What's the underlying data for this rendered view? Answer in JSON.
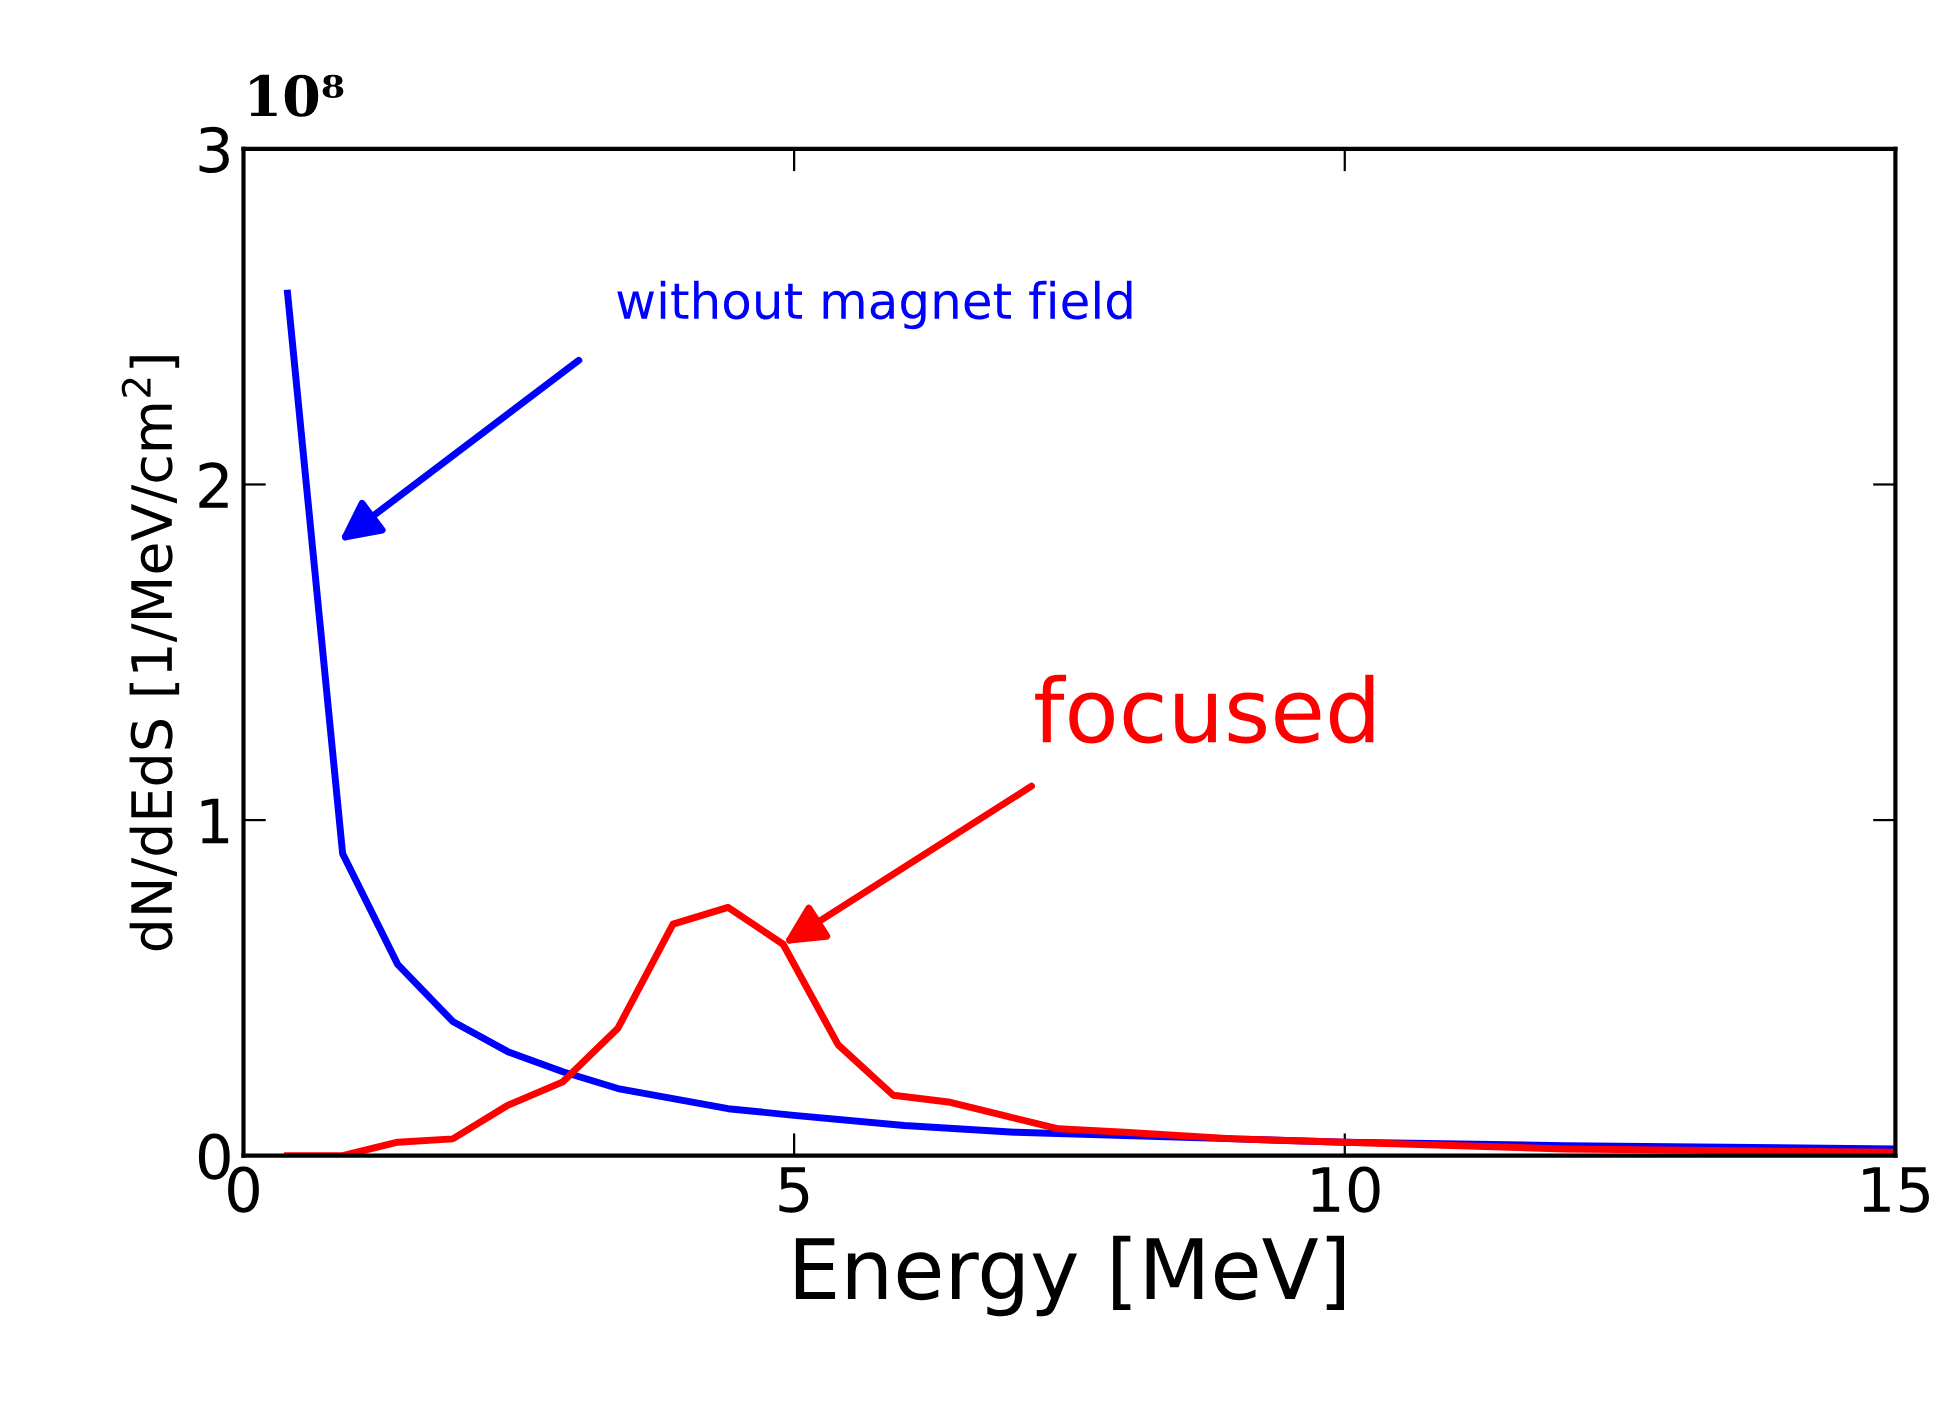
{
  "chart_data": {
    "type": "line",
    "xlabel": "Energy [MeV]",
    "ylabel": "dN/dEdS [1/MeV/cm$^{2}$]",
    "xlim": [
      0,
      15
    ],
    "ylim": [
      0,
      3
    ],
    "xticks": [
      0,
      5,
      10,
      15
    ],
    "yticks": [
      0,
      1,
      2,
      3
    ],
    "grid": false,
    "legend": false,
    "marker": "none",
    "line_style": "solid",
    "series": [
      {
        "color": "#0000ff",
        "x": [
          0.4,
          0.9,
          1.4,
          1.9,
          2.4,
          2.9,
          3.4,
          3.9,
          4.4,
          5,
          6,
          7,
          8,
          9,
          10,
          12,
          15
        ],
        "values": [
          2.57,
          0.9,
          0.57,
          0.4,
          0.31,
          0.25,
          0.2,
          0.17,
          0.14,
          0.12,
          0.09,
          0.07,
          0.06,
          0.05,
          0.04,
          0.03,
          0.02
        ]
      },
      {
        "color": "#ff0000",
        "x": [
          0.4,
          0.9,
          1.4,
          1.9,
          2.4,
          2.9,
          3.4,
          3.9,
          4.4,
          4.9,
          5.4,
          5.9,
          6.4,
          6.9,
          7.4,
          8,
          9,
          10,
          12,
          15
        ],
        "values": [
          0,
          0,
          0.04,
          0.05,
          0.15,
          0.22,
          0.38,
          0.69,
          0.74,
          0.63,
          0.33,
          0.18,
          0.16,
          0.12,
          0.08,
          0.07,
          0.05,
          0.04,
          0.02,
          0.01
        ]
      }
    ],
    "annotations": [
      "10⁸",
      "without magnet field",
      {
        "text": "focused",
        "x": 4.9,
        "y": 0.63
      }
    ]
  }
}
